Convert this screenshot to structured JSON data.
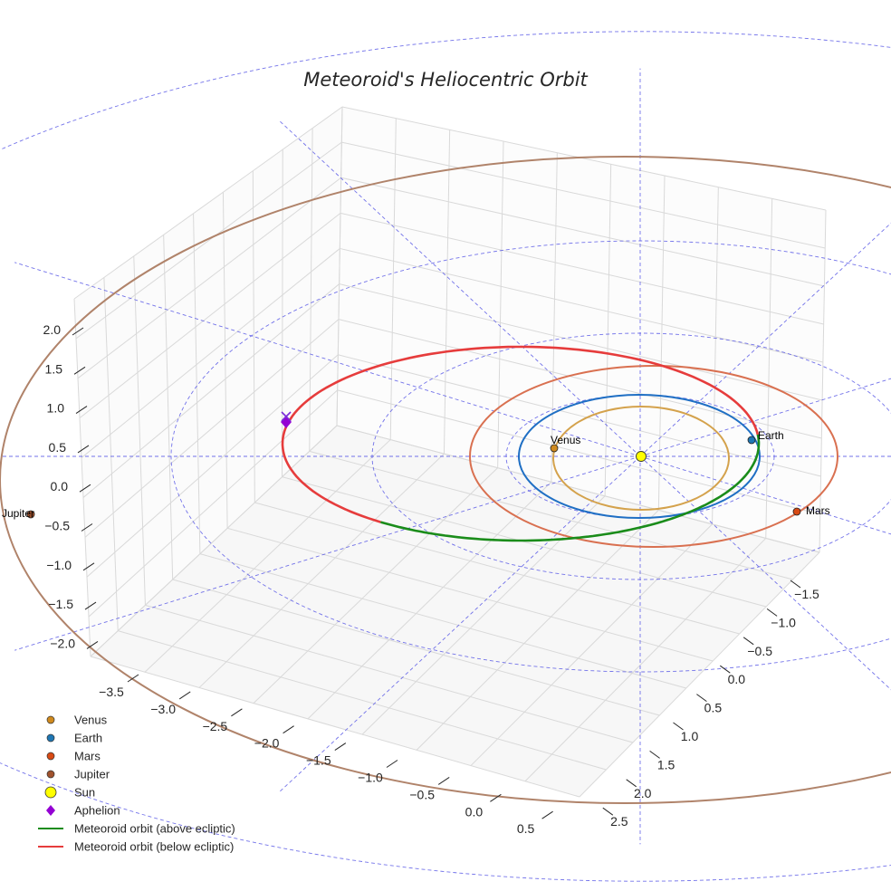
{
  "chart_data": {
    "type": "line3d",
    "title": "Meteoroid's Heliocentric Orbit",
    "xlabel": "",
    "ylabel": "",
    "zlabel": "",
    "x_ticks": [
      "−3.5",
      "−3.0",
      "−2.5",
      "−2.0",
      "−1.5",
      "−1.0",
      "−0.5",
      "0.0",
      "0.5"
    ],
    "y_ticks": [
      "−1.5",
      "−1.0",
      "−0.5",
      "0.0",
      "0.5",
      "1.0",
      "1.5",
      "2.0",
      "2.5"
    ],
    "z_ticks": [
      "2.0",
      "1.5",
      "1.0",
      "0.5",
      "0.0",
      "−0.5",
      "−1.0",
      "−1.5",
      "−2.0"
    ],
    "grid": true,
    "legend_position": "bottom-left",
    "planets": [
      {
        "name": "Venus",
        "label": "Venus",
        "radius_au": 0.72,
        "color": "#d08a1e",
        "orbit_color": "#d4a24c"
      },
      {
        "name": "Earth",
        "label": "Earth",
        "radius_au": 1.0,
        "color": "#1f77b4",
        "orbit_color": "#1f6fc4"
      },
      {
        "name": "Mars",
        "label": "Mars",
        "radius_au": 1.52,
        "color": "#d84a14",
        "orbit_color": "#d97050"
      },
      {
        "name": "Jupiter",
        "label": "Jupiter",
        "radius_au": 5.2,
        "color": "#a0522d",
        "orbit_color": "#b0836a"
      }
    ],
    "sun": {
      "name": "Sun",
      "position": [
        0,
        0,
        0
      ],
      "color": "#ffff00"
    },
    "aphelion": {
      "name": "Aphelion",
      "color": "#9400d3"
    },
    "meteoroid_orbit": {
      "above_ecliptic": {
        "name": "Meteoroid orbit (above ecliptic)",
        "color": "#1a8c1a"
      },
      "below_ecliptic": {
        "name": "Meteoroid orbit (below ecliptic)",
        "color": "#e63c3c"
      }
    },
    "legend": [
      {
        "label": "Venus",
        "kind": "marker",
        "color": "#d08a1e"
      },
      {
        "label": "Earth",
        "kind": "marker",
        "color": "#1f77b4"
      },
      {
        "label": "Mars",
        "kind": "marker",
        "color": "#d84a14"
      },
      {
        "label": "Jupiter",
        "kind": "marker",
        "color": "#a0522d"
      },
      {
        "label": "Sun",
        "kind": "bigmarker",
        "color": "#ffff00"
      },
      {
        "label": "Aphelion",
        "kind": "diamond",
        "color": "#9400d3"
      },
      {
        "label": "Meteoroid orbit (above ecliptic)",
        "kind": "line",
        "color": "#1a8c1a"
      },
      {
        "label": "Meteoroid orbit (below ecliptic)",
        "kind": "line",
        "color": "#e63c3c"
      }
    ]
  }
}
